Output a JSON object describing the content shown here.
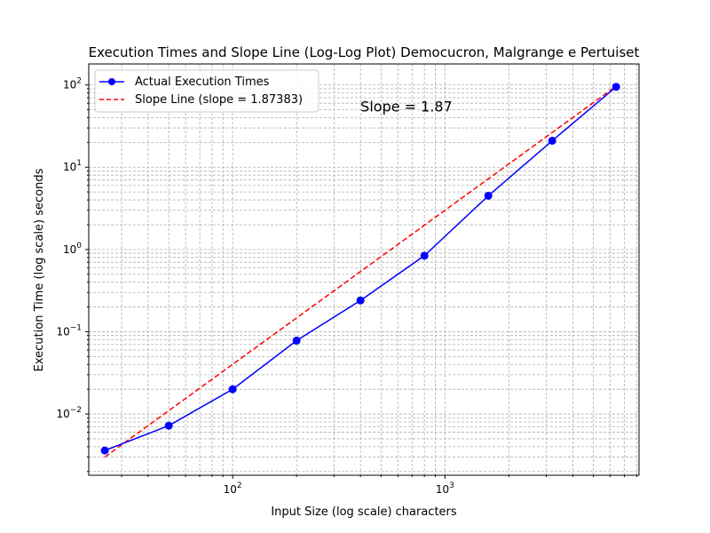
{
  "chart_data": {
    "type": "line",
    "title": "Execution Times and Slope Line (Log-Log Plot) Democucron, Malgrange e Pertuiset",
    "xlabel": "Input Size (log scale) characters",
    "ylabel": "Execution Time (log scale) seconds",
    "x_scale": "log",
    "y_scale": "log",
    "xlim": [
      21,
      8200
    ],
    "ylim": [
      0.0018,
      180
    ],
    "grid": true,
    "legend_position": "top-left",
    "x_ticks": [
      {
        "value": 100,
        "base": "10",
        "exp": "2"
      },
      {
        "value": 1000,
        "base": "10",
        "exp": "3"
      }
    ],
    "y_ticks": [
      {
        "value": 0.01,
        "base": "10",
        "exp": "−2"
      },
      {
        "value": 0.1,
        "base": "10",
        "exp": "−1"
      },
      {
        "value": 1,
        "base": "10",
        "exp": "0"
      },
      {
        "value": 10,
        "base": "10",
        "exp": "1"
      },
      {
        "value": 100,
        "base": "10",
        "exp": "2"
      }
    ],
    "series": [
      {
        "name": "Actual Execution Times",
        "color": "#0000ff",
        "style": "solid",
        "marker": "circle",
        "x": [
          25,
          50,
          100,
          200,
          400,
          800,
          1600,
          3200,
          6400
        ],
        "y": [
          0.0036,
          0.0072,
          0.02,
          0.078,
          0.24,
          0.84,
          4.5,
          21,
          95
        ]
      },
      {
        "name": "Slope Line (slope = 1.87383)",
        "color": "#ff0000",
        "style": "dashed",
        "marker": "none",
        "x": [
          25,
          6400
        ],
        "y": [
          0.003,
          97
        ]
      }
    ],
    "annotations": [
      {
        "text": "Slope = 1.87",
        "x": 400,
        "y": 55,
        "color": "#ff0000"
      }
    ]
  }
}
